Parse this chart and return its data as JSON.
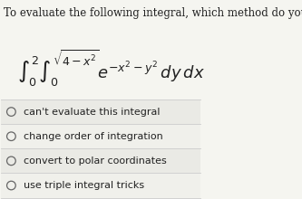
{
  "title": "To evaluate the following integral, which method do you use?",
  "integral_latex": "$\\int_0^2 \\int_0^{\\sqrt{4-x^2}} e^{-x^2-y^2}\\, dy\\, dx$",
  "options": [
    "can't evaluate this integral",
    "change order of integration",
    "convert to polar coordinates",
    "use triple integral tricks"
  ],
  "bg_color": "#f5f5f0",
  "option_bg_even": "#eaeae5",
  "option_bg_odd": "#f0f0eb",
  "title_fontsize": 8.5,
  "integral_fontsize": 13,
  "option_fontsize": 8.0,
  "text_color": "#222222",
  "line_color": "#cccccc"
}
